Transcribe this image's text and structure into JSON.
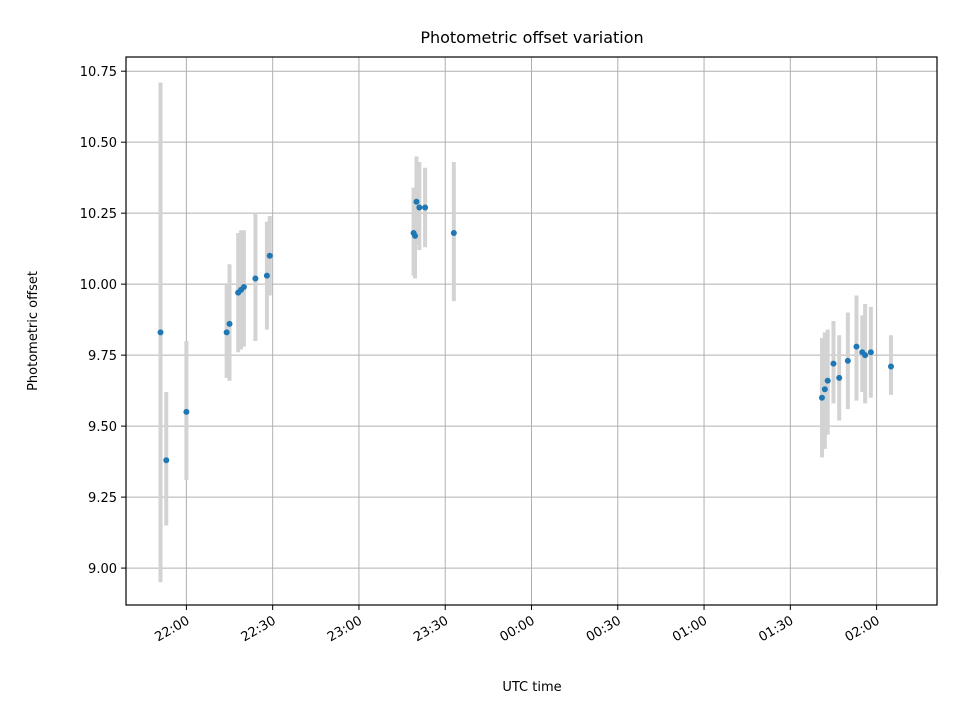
{
  "chart_data": {
    "type": "scatter",
    "title": "Photometric offset variation",
    "xlabel": "UTC time",
    "ylabel": "Photometric offset",
    "grid": true,
    "xlim": [
      "21:39",
      "02:21"
    ],
    "ylim": [
      8.87,
      10.8
    ],
    "x_ticks": [
      "22:00",
      "22:30",
      "23:00",
      "23:30",
      "00:00",
      "00:30",
      "01:00",
      "01:30",
      "02:00"
    ],
    "y_ticks": [
      "9.00",
      "9.25",
      "9.50",
      "9.75",
      "10.00",
      "10.25",
      "10.50",
      "10.75"
    ],
    "error_bar_color": "#d3d3d3",
    "marker_color": "#1f77b4",
    "points": [
      {
        "x": "21:51",
        "y": 9.83,
        "err_low": 8.95,
        "err_high": 10.71
      },
      {
        "x": "21:53",
        "y": 9.38,
        "err_low": 9.15,
        "err_high": 9.62
      },
      {
        "x": "22:00",
        "y": 9.55,
        "err_low": 9.31,
        "err_high": 9.8
      },
      {
        "x": "22:14",
        "y": 9.83,
        "err_low": 9.67,
        "err_high": 10.0
      },
      {
        "x": "22:15",
        "y": 9.86,
        "err_low": 9.66,
        "err_high": 10.07
      },
      {
        "x": "22:18",
        "y": 9.97,
        "err_low": 9.76,
        "err_high": 10.18
      },
      {
        "x": "22:19",
        "y": 9.98,
        "err_low": 9.77,
        "err_high": 10.19
      },
      {
        "x": "22:20",
        "y": 9.99,
        "err_low": 9.78,
        "err_high": 10.19
      },
      {
        "x": "22:24",
        "y": 10.02,
        "err_low": 9.8,
        "err_high": 10.25
      },
      {
        "x": "22:28",
        "y": 10.03,
        "err_low": 9.84,
        "err_high": 10.22
      },
      {
        "x": "22:29",
        "y": 10.1,
        "err_low": 9.96,
        "err_high": 10.24
      },
      {
        "x": "23:19",
        "y": 10.18,
        "err_low": 10.03,
        "err_high": 10.34
      },
      {
        "x": "23:19.5",
        "y": 10.17,
        "err_low": 10.02,
        "err_high": 10.32
      },
      {
        "x": "23:20",
        "y": 10.29,
        "err_low": 10.14,
        "err_high": 10.45
      },
      {
        "x": "23:21",
        "y": 10.27,
        "err_low": 10.12,
        "err_high": 10.43
      },
      {
        "x": "23:23",
        "y": 10.27,
        "err_low": 10.13,
        "err_high": 10.41
      },
      {
        "x": "23:33",
        "y": 10.18,
        "err_low": 9.94,
        "err_high": 10.43
      },
      {
        "x": "01:41",
        "y": 9.6,
        "err_low": 9.39,
        "err_high": 9.81
      },
      {
        "x": "01:42",
        "y": 9.63,
        "err_low": 9.42,
        "err_high": 9.83
      },
      {
        "x": "01:43",
        "y": 9.66,
        "err_low": 9.47,
        "err_high": 9.84
      },
      {
        "x": "01:45",
        "y": 9.72,
        "err_low": 9.58,
        "err_high": 9.87
      },
      {
        "x": "01:47",
        "y": 9.67,
        "err_low": 9.52,
        "err_high": 9.82
      },
      {
        "x": "01:50",
        "y": 9.73,
        "err_low": 9.56,
        "err_high": 9.9
      },
      {
        "x": "01:53",
        "y": 9.78,
        "err_low": 9.59,
        "err_high": 9.96
      },
      {
        "x": "01:55",
        "y": 9.76,
        "err_low": 9.62,
        "err_high": 9.89
      },
      {
        "x": "01:56",
        "y": 9.75,
        "err_low": 9.58,
        "err_high": 9.93
      },
      {
        "x": "01:58",
        "y": 9.76,
        "err_low": 9.6,
        "err_high": 9.92
      },
      {
        "x": "02:05",
        "y": 9.71,
        "err_low": 9.61,
        "err_high": 9.82
      }
    ]
  }
}
